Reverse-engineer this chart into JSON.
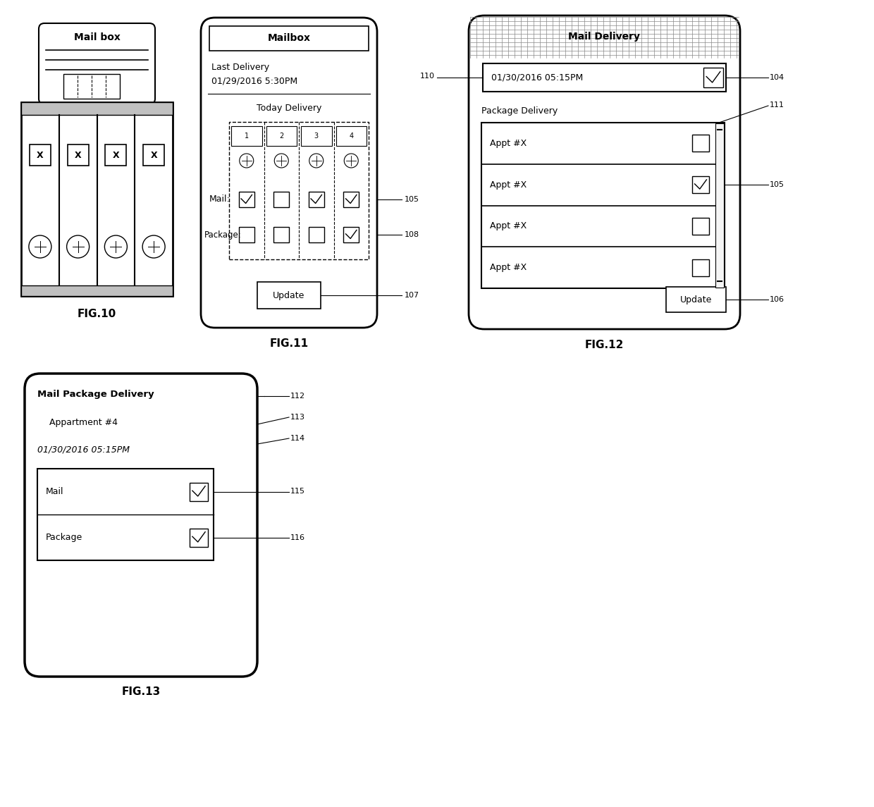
{
  "bg_color": "#ffffff",
  "line_color": "#000000",
  "fig10": {
    "label": "FIG.10"
  },
  "fig11": {
    "label": "FIG.11"
  },
  "fig12": {
    "label": "FIG.12"
  },
  "fig13": {
    "label": "FIG.13"
  }
}
